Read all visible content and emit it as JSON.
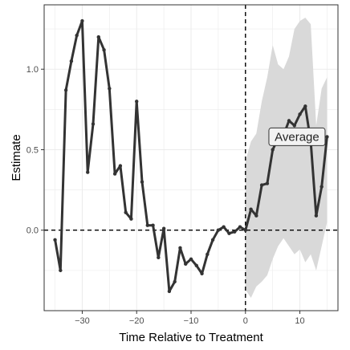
{
  "chart_data": {
    "type": "line",
    "xlabel": "Time Relative to Treatment",
    "ylabel": "Estimate",
    "xlim": [
      -37,
      17
    ],
    "ylim": [
      -0.5,
      1.4
    ],
    "x_ticks": [
      -30,
      -20,
      -10,
      0,
      10
    ],
    "x_tick_labels": [
      "−30",
      "−20",
      "−10",
      "0",
      "10"
    ],
    "y_ticks": [
      0.0,
      0.5,
      1.0
    ],
    "y_tick_labels": [
      "0.0",
      "0.5",
      "1.0"
    ],
    "grid": true,
    "reference_lines": {
      "vertical_x": 0,
      "horizontal_y": 0,
      "style": "dashed"
    },
    "series": [
      {
        "x": [
          -35,
          -34,
          -33,
          -32,
          -31,
          -30,
          -29,
          -28,
          -27,
          -26,
          -25,
          -24,
          -23,
          -22,
          -21,
          -20,
          -19,
          -18,
          -17,
          -16,
          -15,
          -14,
          -13,
          -12,
          -11,
          -10,
          -9,
          -8,
          -7,
          -6,
          -5,
          -4,
          -3,
          -2,
          -1,
          0,
          1,
          2,
          3,
          4,
          5,
          6,
          7,
          8,
          9,
          10,
          11,
          12,
          13,
          14,
          15
        ],
        "y": [
          -0.06,
          -0.25,
          0.87,
          1.05,
          1.21,
          1.3,
          0.36,
          0.66,
          1.2,
          1.12,
          0.88,
          0.35,
          0.4,
          0.11,
          0.07,
          0.8,
          0.3,
          0.03,
          0.03,
          -0.17,
          0.01,
          -0.38,
          -0.32,
          -0.11,
          -0.21,
          -0.18,
          -0.22,
          -0.27,
          -0.15,
          -0.06,
          0.0,
          0.02,
          -0.02,
          -0.01,
          0.02,
          0.0,
          0.13,
          0.09,
          0.28,
          0.29,
          0.5,
          0.57,
          0.59,
          0.68,
          0.65,
          0.72,
          0.77,
          0.55,
          0.09,
          0.27,
          0.58
        ],
        "color": "#333333"
      }
    ],
    "confidence_band": {
      "x": [
        0,
        1,
        2,
        3,
        4,
        5,
        6,
        7,
        8,
        9,
        10,
        11,
        12,
        13,
        14,
        15
      ],
      "lower": [
        -0.37,
        -0.42,
        -0.35,
        -0.32,
        -0.28,
        -0.18,
        -0.1,
        -0.05,
        -0.1,
        -0.15,
        -0.12,
        -0.2,
        -0.15,
        -0.25,
        -0.1,
        0.05
      ],
      "upper": [
        0.43,
        0.55,
        0.6,
        0.8,
        0.95,
        1.15,
        1.03,
        1.0,
        1.08,
        1.25,
        1.3,
        1.32,
        1.28,
        0.65,
        0.88,
        0.95
      ],
      "color": "#d9d9d9"
    },
    "annotation": {
      "text": "Average",
      "x": 4.6,
      "y": 0.58
    }
  }
}
